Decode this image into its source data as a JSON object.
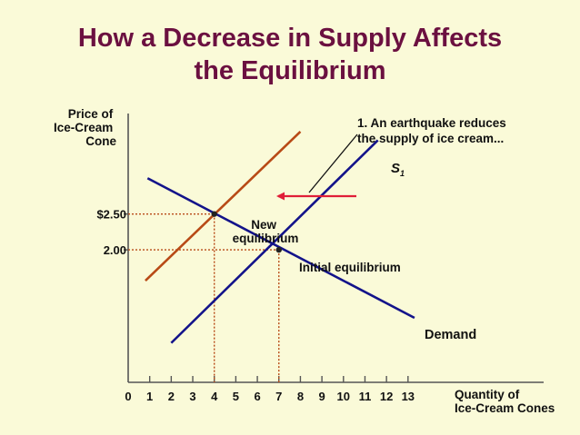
{
  "slide": {
    "title_line1": "How a Decrease in Supply Affects",
    "title_line2": "the Equilibrium"
  },
  "chart_data": {
    "type": "line",
    "title": "How a Decrease in Supply Affects the Equilibrium",
    "ylabel_lines": [
      "Price of",
      "Ice-Cream",
      "Cone"
    ],
    "xlabel_lines": [
      "Quantity of",
      "Ice-Cream Cones"
    ],
    "x_ticks": [
      "0",
      "1",
      "2",
      "3",
      "4",
      "5",
      "6",
      "7",
      "8",
      "9",
      "10",
      "11",
      "12",
      "13"
    ],
    "y_ticks": [
      {
        "value": 2.5,
        "label": "$2.50"
      },
      {
        "value": 2.0,
        "label": "2.00"
      }
    ],
    "xlim": [
      0,
      19.3
    ],
    "ylim": [
      0.15,
      4.55
    ],
    "grid": false,
    "series": [
      {
        "key": "demand",
        "name": "Demand",
        "color": "#13138a",
        "points": [
          [
            0.9,
            3.0
          ],
          [
            13.3,
            1.05
          ]
        ]
      },
      {
        "key": "s1",
        "name": "S1",
        "color": "#13138a",
        "points": [
          [
            2.0,
            0.7
          ],
          [
            11.6,
            3.53
          ]
        ]
      },
      {
        "key": "s2",
        "name": "",
        "color": "#b84a16",
        "points": [
          [
            0.8,
            1.57
          ],
          [
            8.0,
            3.65
          ]
        ]
      }
    ],
    "equilibria": [
      {
        "key": "new",
        "x": 4,
        "y": 2.5,
        "label_lines": [
          "New",
          "equilibrium"
        ]
      },
      {
        "key": "initial",
        "x": 7,
        "y": 2.0,
        "label": "Initial equilibrium"
      }
    ],
    "guide_color": "#b84a16",
    "shift_arrow_color": "#e01e38",
    "annotation": {
      "lines": [
        "1. An earthquake reduces",
        "the supply of ice cream..."
      ]
    },
    "s1_label": {
      "main": "S",
      "sub": "1"
    },
    "demand_label": "Demand"
  }
}
